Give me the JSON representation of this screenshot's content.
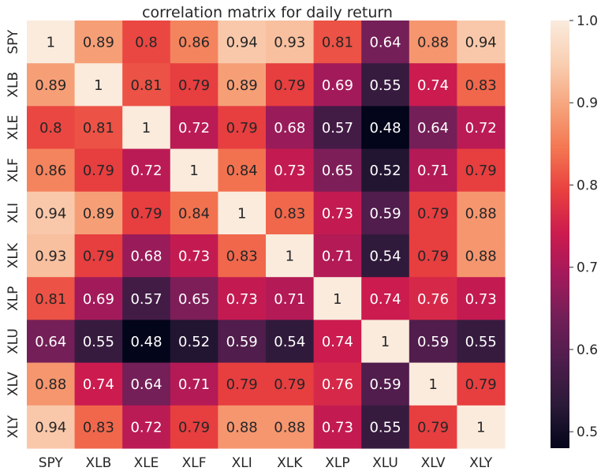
{
  "chart_data": {
    "type": "heatmap",
    "title": "correlation matrix for daily return",
    "xlabel": "",
    "ylabel": "",
    "x_categories": [
      "SPY",
      "XLB",
      "XLE",
      "XLF",
      "XLI",
      "XLK",
      "XLP",
      "XLU",
      "XLV",
      "XLY"
    ],
    "y_categories": [
      "SPY",
      "XLB",
      "XLE",
      "XLF",
      "XLI",
      "XLK",
      "XLP",
      "XLU",
      "XLV",
      "XLY"
    ],
    "values": [
      [
        1,
        0.89,
        0.8,
        0.86,
        0.94,
        0.93,
        0.81,
        0.64,
        0.88,
        0.94
      ],
      [
        0.89,
        1,
        0.81,
        0.79,
        0.89,
        0.79,
        0.69,
        0.55,
        0.74,
        0.83
      ],
      [
        0.8,
        0.81,
        1,
        0.72,
        0.79,
        0.68,
        0.57,
        0.48,
        0.64,
        0.72
      ],
      [
        0.86,
        0.79,
        0.72,
        1,
        0.84,
        0.73,
        0.65,
        0.52,
        0.71,
        0.79
      ],
      [
        0.94,
        0.89,
        0.79,
        0.84,
        1,
        0.83,
        0.73,
        0.59,
        0.79,
        0.88
      ],
      [
        0.93,
        0.79,
        0.68,
        0.73,
        0.83,
        1,
        0.71,
        0.54,
        0.79,
        0.88
      ],
      [
        0.81,
        0.69,
        0.57,
        0.65,
        0.73,
        0.71,
        1,
        0.74,
        0.76,
        0.73
      ],
      [
        0.64,
        0.55,
        0.48,
        0.52,
        0.59,
        0.54,
        0.74,
        1,
        0.59,
        0.55
      ],
      [
        0.88,
        0.74,
        0.64,
        0.71,
        0.79,
        0.79,
        0.76,
        0.59,
        1,
        0.79
      ],
      [
        0.94,
        0.83,
        0.72,
        0.79,
        0.88,
        0.88,
        0.73,
        0.55,
        0.79,
        1
      ]
    ],
    "annotations": [
      [
        "1",
        "0.89",
        "0.8",
        "0.86",
        "0.94",
        "0.93",
        "0.81",
        "0.64",
        "0.88",
        "0.94"
      ],
      [
        "0.89",
        "1",
        "0.81",
        "0.79",
        "0.89",
        "0.79",
        "0.69",
        "0.55",
        "0.74",
        "0.83"
      ],
      [
        "0.8",
        "0.81",
        "1",
        "0.72",
        "0.79",
        "0.68",
        "0.57",
        "0.48",
        "0.64",
        "0.72"
      ],
      [
        "0.86",
        "0.79",
        "0.72",
        "1",
        "0.84",
        "0.73",
        "0.65",
        "0.52",
        "0.71",
        "0.79"
      ],
      [
        "0.94",
        "0.89",
        "0.79",
        "0.84",
        "1",
        "0.83",
        "0.73",
        "0.59",
        "0.79",
        "0.88"
      ],
      [
        "0.93",
        "0.79",
        "0.68",
        "0.73",
        "0.83",
        "1",
        "0.71",
        "0.54",
        "0.79",
        "0.88"
      ],
      [
        "0.81",
        "0.69",
        "0.57",
        "0.65",
        "0.73",
        "0.71",
        "1",
        "0.74",
        "0.76",
        "0.73"
      ],
      [
        "0.64",
        "0.55",
        "0.48",
        "0.52",
        "0.59",
        "0.54",
        "0.74",
        "1",
        "0.59",
        "0.55"
      ],
      [
        "0.88",
        "0.74",
        "0.64",
        "0.71",
        "0.79",
        "0.79",
        "0.76",
        "0.59",
        "1",
        "0.79"
      ],
      [
        "0.94",
        "0.83",
        "0.72",
        "0.79",
        "0.88",
        "0.88",
        "0.73",
        "0.55",
        "0.79",
        "1"
      ]
    ],
    "colorbar": {
      "range": [
        0.48,
        1.0
      ],
      "ticks": [
        0.5,
        0.6,
        0.7,
        0.8,
        0.9,
        1.0
      ],
      "tick_labels": [
        "0.5",
        "0.6",
        "0.7",
        "0.8",
        "0.9",
        "1.0"
      ],
      "colormap": "rocket",
      "colormap_stops": [
        "#03051a",
        "#2b1a38",
        "#4c1d4b",
        "#701f57",
        "#a11a5b",
        "#cb1b4f",
        "#e83f3f",
        "#f37651",
        "#f6a47c",
        "#f9cfb2",
        "#faebdd"
      ]
    },
    "grid": false,
    "legend": "none"
  }
}
